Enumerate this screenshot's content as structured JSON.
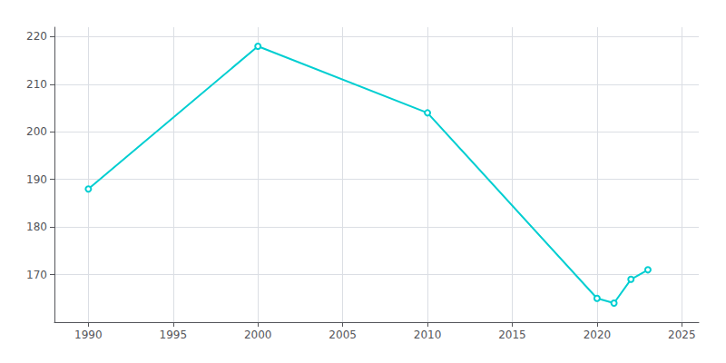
{
  "chart_data": {
    "type": "line",
    "x": [
      1990,
      2000,
      2010,
      2020,
      2021,
      2022,
      2023
    ],
    "values": [
      188,
      218,
      204,
      165,
      164,
      169,
      171
    ],
    "color": "#00CED1",
    "xlim": [
      1988,
      2026
    ],
    "ylim": [
      160,
      222
    ],
    "xticks": [
      1990,
      1995,
      2000,
      2005,
      2010,
      2015,
      2020,
      2025
    ],
    "yticks": [
      170,
      180,
      190,
      200,
      210,
      220
    ],
    "grid": true
  }
}
